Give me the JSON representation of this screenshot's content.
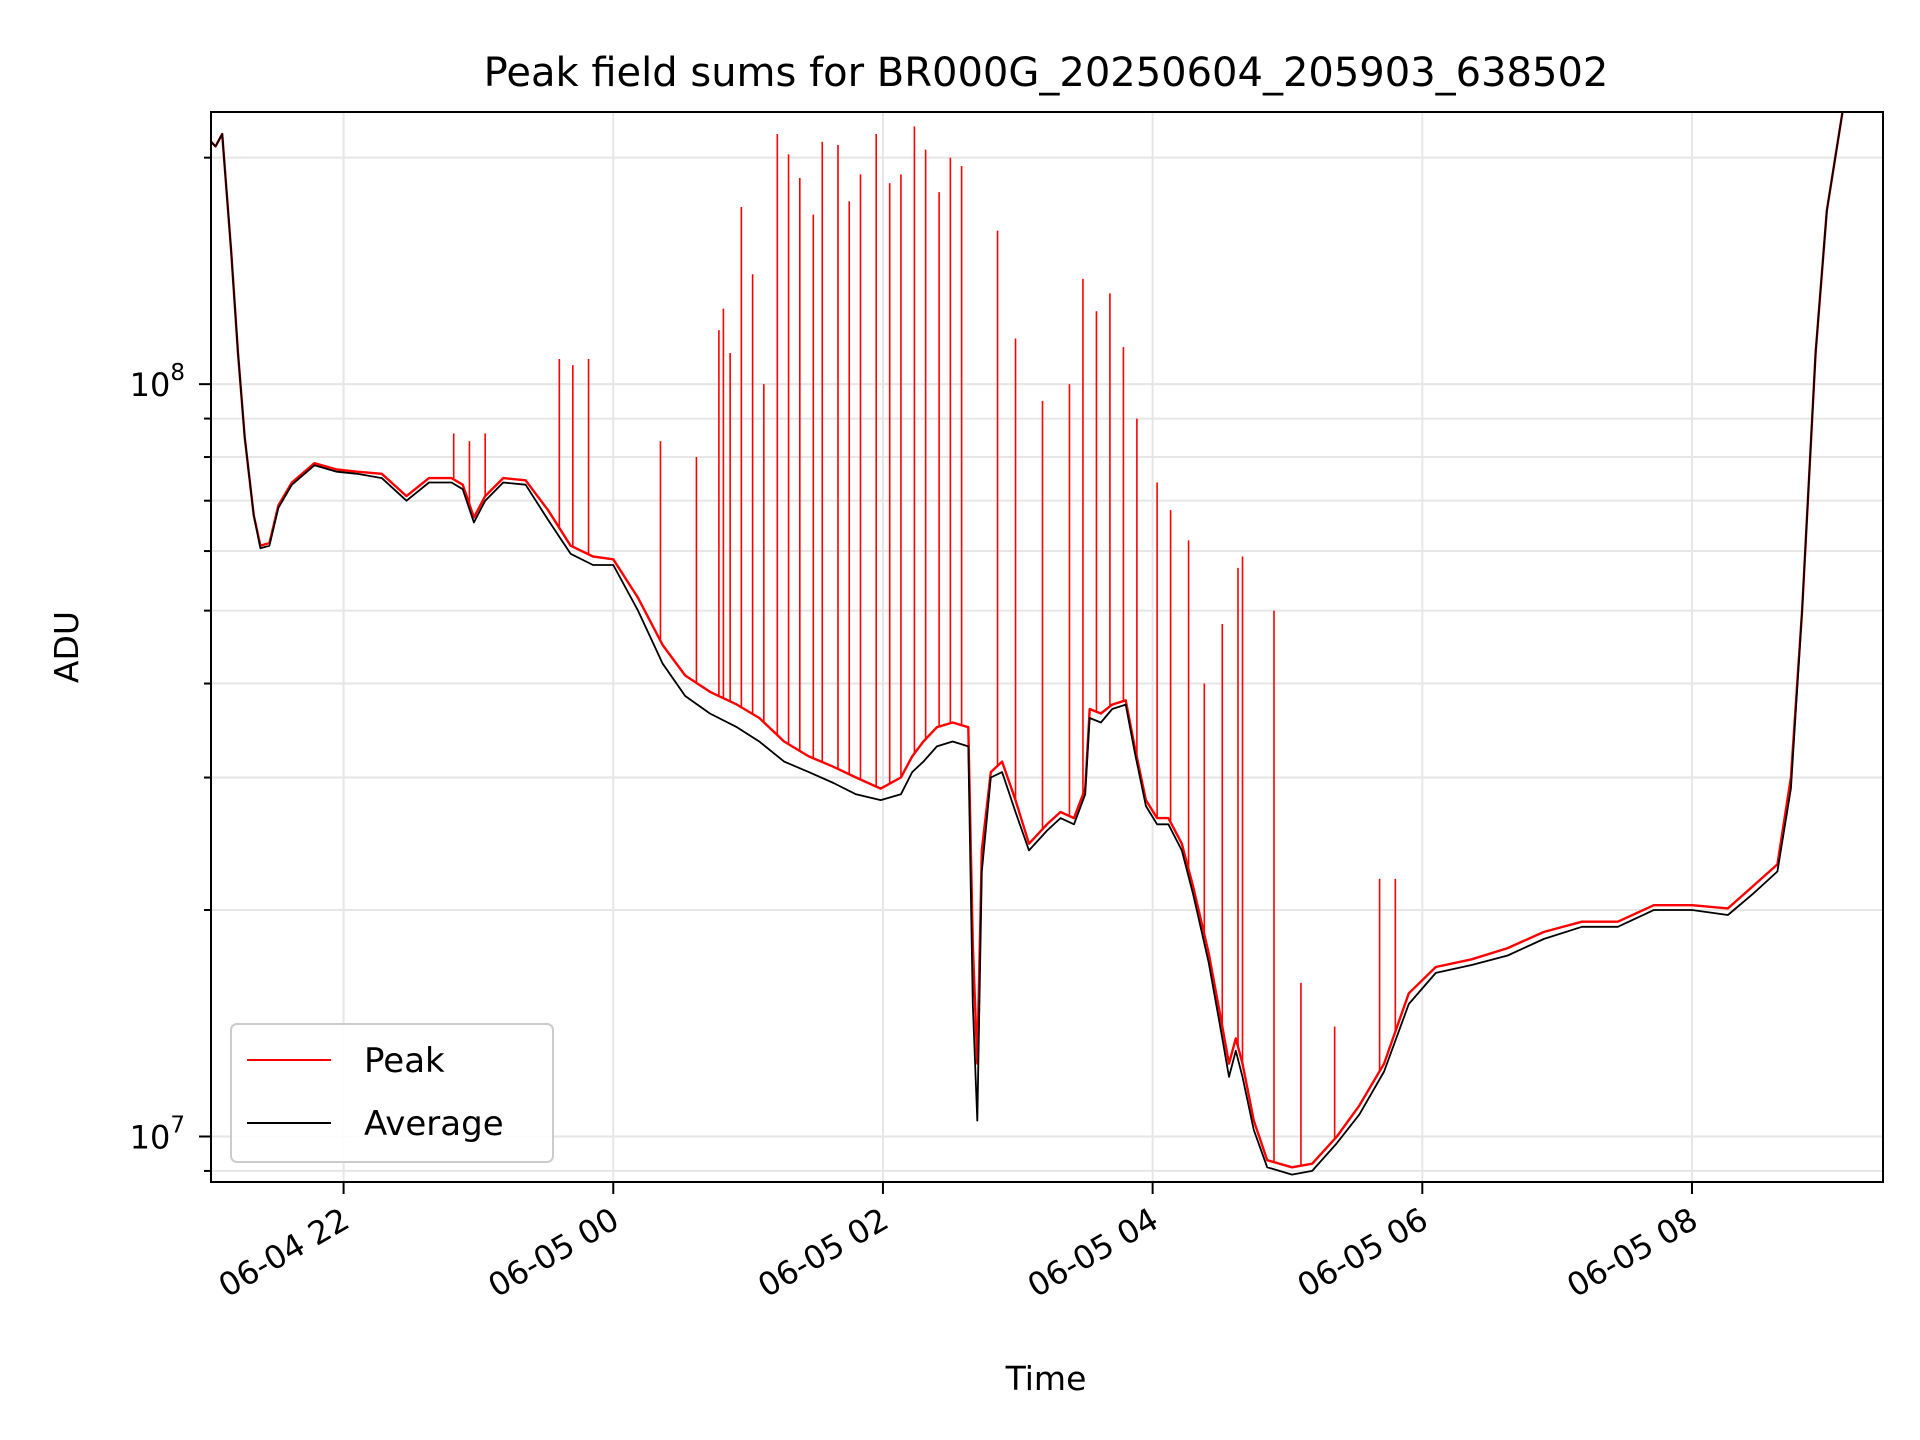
{
  "chart_data": {
    "type": "line",
    "title": "Peak field sums for BR000G_20250604_205903_638502",
    "xlabel": "Time",
    "ylabel": "ADU",
    "x_range": [
      "2025-06-04T21:01",
      "2025-06-05T09:25"
    ],
    "ylim": [
      8700000,
      230000000
    ],
    "y_scale": "log",
    "grid": true,
    "legend_position": "lower-left",
    "x_ticks": [
      {
        "t": "2025-06-04T22:00",
        "label": "06-04 22"
      },
      {
        "t": "2025-06-05T00:00",
        "label": "06-05 00"
      },
      {
        "t": "2025-06-05T02:00",
        "label": "06-05 02"
      },
      {
        "t": "2025-06-05T04:00",
        "label": "06-05 04"
      },
      {
        "t": "2025-06-05T06:00",
        "label": "06-05 06"
      },
      {
        "t": "2025-06-05T08:00",
        "label": "06-05 08"
      }
    ],
    "y_ticks": [
      {
        "value": 10000000,
        "base": "10",
        "exp": "7"
      },
      {
        "value": 100000000,
        "base": "10",
        "exp": "8"
      }
    ],
    "series": [
      {
        "name": "Peak",
        "color": "#ff0000",
        "line": [
          [
            "2025-06-04T21:01",
            210000000
          ],
          [
            "2025-06-04T21:03",
            207000000
          ],
          [
            "2025-06-04T21:06",
            215000000
          ],
          [
            "2025-06-04T21:10",
            150000000
          ],
          [
            "2025-06-04T21:13",
            110000000
          ],
          [
            "2025-06-04T21:16",
            85000000
          ],
          [
            "2025-06-04T21:20",
            67000000
          ],
          [
            "2025-06-04T21:23",
            61000000
          ],
          [
            "2025-06-04T21:27",
            61500000
          ],
          [
            "2025-06-04T21:31",
            69000000
          ],
          [
            "2025-06-04T21:37",
            74000000
          ],
          [
            "2025-06-04T21:47",
            78500000
          ],
          [
            "2025-06-04T21:57",
            77000000
          ],
          [
            "2025-06-04T22:06",
            76500000
          ],
          [
            "2025-06-04T22:17",
            76000000
          ],
          [
            "2025-06-04T22:28",
            71000000
          ],
          [
            "2025-06-04T22:38",
            75000000
          ],
          [
            "2025-06-04T22:48",
            75000000
          ],
          [
            "2025-06-04T22:53",
            73500000
          ],
          [
            "2025-06-04T22:58",
            66500000
          ],
          [
            "2025-06-04T23:03",
            71000000
          ],
          [
            "2025-06-04T23:11",
            75000000
          ],
          [
            "2025-06-04T23:21",
            74500000
          ],
          [
            "2025-06-04T23:31",
            68000000
          ],
          [
            "2025-06-04T23:41",
            61000000
          ],
          [
            "2025-06-04T23:51",
            59000000
          ],
          [
            "2025-06-05T00:00",
            58500000
          ],
          [
            "2025-06-05T00:11",
            52000000
          ],
          [
            "2025-06-05T00:22",
            45000000
          ],
          [
            "2025-06-05T00:32",
            41000000
          ],
          [
            "2025-06-05T00:43",
            39000000
          ],
          [
            "2025-06-05T00:55",
            37500000
          ],
          [
            "2025-06-05T01:05",
            36000000
          ],
          [
            "2025-06-05T01:16",
            33500000
          ],
          [
            "2025-06-05T01:27",
            32000000
          ],
          [
            "2025-06-05T01:38",
            31000000
          ],
          [
            "2025-06-05T01:48",
            30000000
          ],
          [
            "2025-06-05T01:59",
            29000000
          ],
          [
            "2025-06-05T02:08",
            30000000
          ],
          [
            "2025-06-05T02:13",
            32000000
          ],
          [
            "2025-06-05T02:18",
            33500000
          ],
          [
            "2025-06-05T02:24",
            35000000
          ],
          [
            "2025-06-05T02:31",
            35500000
          ],
          [
            "2025-06-05T02:38",
            35000000
          ],
          [
            "2025-06-05T02:40",
            18000000
          ],
          [
            "2025-06-05T02:42",
            12500000
          ],
          [
            "2025-06-05T02:44",
            24000000
          ],
          [
            "2025-06-05T02:48",
            30500000
          ],
          [
            "2025-06-05T02:53",
            31500000
          ],
          [
            "2025-06-05T02:59",
            28000000
          ],
          [
            "2025-06-05T03:05",
            24500000
          ],
          [
            "2025-06-05T03:13",
            26000000
          ],
          [
            "2025-06-05T03:19",
            27000000
          ],
          [
            "2025-06-05T03:25",
            26500000
          ],
          [
            "2025-06-05T03:30",
            29000000
          ],
          [
            "2025-06-05T03:32",
            37000000
          ],
          [
            "2025-06-05T03:37",
            36500000
          ],
          [
            "2025-06-05T03:42",
            37500000
          ],
          [
            "2025-06-05T03:48",
            38000000
          ],
          [
            "2025-06-05T03:52",
            33000000
          ],
          [
            "2025-06-05T03:57",
            28000000
          ],
          [
            "2025-06-05T04:02",
            26500000
          ],
          [
            "2025-06-05T04:07",
            26500000
          ],
          [
            "2025-06-05T04:13",
            24500000
          ],
          [
            "2025-06-05T04:18",
            21500000
          ],
          [
            "2025-06-05T04:25",
            17500000
          ],
          [
            "2025-06-05T04:31",
            14000000
          ],
          [
            "2025-06-05T04:34",
            12500000
          ],
          [
            "2025-06-05T04:37",
            13500000
          ],
          [
            "2025-06-05T04:40",
            12500000
          ],
          [
            "2025-06-05T04:45",
            10500000
          ],
          [
            "2025-06-05T04:51",
            9300000
          ],
          [
            "2025-06-05T05:02",
            9100000
          ],
          [
            "2025-06-05T05:11",
            9200000
          ],
          [
            "2025-06-05T05:22",
            10000000
          ],
          [
            "2025-06-05T05:32",
            11000000
          ],
          [
            "2025-06-05T05:43",
            12500000
          ],
          [
            "2025-06-05T05:54",
            15500000
          ],
          [
            "2025-06-05T06:06",
            16800000
          ],
          [
            "2025-06-05T06:22",
            17200000
          ],
          [
            "2025-06-05T06:38",
            17800000
          ],
          [
            "2025-06-05T06:54",
            18700000
          ],
          [
            "2025-06-05T07:11",
            19300000
          ],
          [
            "2025-06-05T07:27",
            19300000
          ],
          [
            "2025-06-05T07:43",
            20300000
          ],
          [
            "2025-06-05T08:00",
            20300000
          ],
          [
            "2025-06-05T08:16",
            20100000
          ],
          [
            "2025-06-05T08:27",
            21500000
          ],
          [
            "2025-06-05T08:38",
            23000000
          ],
          [
            "2025-06-05T08:44",
            30000000
          ],
          [
            "2025-06-05T08:49",
            50000000
          ],
          [
            "2025-06-05T08:55",
            110000000
          ],
          [
            "2025-06-05T09:00",
            170000000
          ],
          [
            "2025-06-05T09:07",
            230000000
          ]
        ],
        "spikes": [
          [
            "2025-06-04T22:49",
            86000000
          ],
          [
            "2025-06-04T22:56",
            84000000
          ],
          [
            "2025-06-04T23:03",
            86000000
          ],
          [
            "2025-06-04T23:36",
            108000000
          ],
          [
            "2025-06-04T23:42",
            106000000
          ],
          [
            "2025-06-04T23:49",
            108000000
          ],
          [
            "2025-06-05T00:21",
            84000000
          ],
          [
            "2025-06-05T00:37",
            80000000
          ],
          [
            "2025-06-05T00:47",
            118000000
          ],
          [
            "2025-06-05T00:49",
            126000000
          ],
          [
            "2025-06-05T00:52",
            110000000
          ],
          [
            "2025-06-05T00:57",
            172000000
          ],
          [
            "2025-06-05T01:02",
            140000000
          ],
          [
            "2025-06-05T01:07",
            100000000
          ],
          [
            "2025-06-05T01:13",
            215000000
          ],
          [
            "2025-06-05T01:18",
            202000000
          ],
          [
            "2025-06-05T01:23",
            188000000
          ],
          [
            "2025-06-05T01:29",
            168000000
          ],
          [
            "2025-06-05T01:33",
            210000000
          ],
          [
            "2025-06-05T01:40",
            208000000
          ],
          [
            "2025-06-05T01:45",
            175000000
          ],
          [
            "2025-06-05T01:50",
            190000000
          ],
          [
            "2025-06-05T01:57",
            215000000
          ],
          [
            "2025-06-05T02:03",
            185000000
          ],
          [
            "2025-06-05T02:08",
            190000000
          ],
          [
            "2025-06-05T02:14",
            220000000
          ],
          [
            "2025-06-05T02:19",
            205000000
          ],
          [
            "2025-06-05T02:25",
            180000000
          ],
          [
            "2025-06-05T02:30",
            200000000
          ],
          [
            "2025-06-05T02:35",
            195000000
          ],
          [
            "2025-06-05T02:51",
            160000000
          ],
          [
            "2025-06-05T02:59",
            115000000
          ],
          [
            "2025-06-05T03:11",
            95000000
          ],
          [
            "2025-06-05T03:23",
            100000000
          ],
          [
            "2025-06-05T03:29",
            138000000
          ],
          [
            "2025-06-05T03:35",
            125000000
          ],
          [
            "2025-06-05T03:41",
            132000000
          ],
          [
            "2025-06-05T03:47",
            112000000
          ],
          [
            "2025-06-05T03:53",
            90000000
          ],
          [
            "2025-06-05T04:02",
            74000000
          ],
          [
            "2025-06-05T04:08",
            68000000
          ],
          [
            "2025-06-05T04:16",
            62000000
          ],
          [
            "2025-06-05T04:23",
            40000000
          ],
          [
            "2025-06-05T04:31",
            48000000
          ],
          [
            "2025-06-05T04:38",
            57000000
          ],
          [
            "2025-06-05T04:40",
            59000000
          ],
          [
            "2025-06-05T04:54",
            50000000
          ],
          [
            "2025-06-05T05:06",
            16000000
          ],
          [
            "2025-06-05T05:21",
            14000000
          ],
          [
            "2025-06-05T05:41",
            22000000
          ],
          [
            "2025-06-05T05:48",
            22000000
          ]
        ]
      },
      {
        "name": "Average",
        "color": "#000000",
        "line": [
          [
            "2025-06-04T21:01",
            210000000
          ],
          [
            "2025-06-04T21:03",
            207000000
          ],
          [
            "2025-06-04T21:06",
            215000000
          ],
          [
            "2025-06-04T21:10",
            150000000
          ],
          [
            "2025-06-04T21:13",
            110000000
          ],
          [
            "2025-06-04T21:16",
            85000000
          ],
          [
            "2025-06-04T21:20",
            67000000
          ],
          [
            "2025-06-04T21:23",
            60500000
          ],
          [
            "2025-06-04T21:27",
            61000000
          ],
          [
            "2025-06-04T21:31",
            68500000
          ],
          [
            "2025-06-04T21:37",
            73500000
          ],
          [
            "2025-06-04T21:47",
            78000000
          ],
          [
            "2025-06-04T21:57",
            76500000
          ],
          [
            "2025-06-04T22:06",
            76000000
          ],
          [
            "2025-06-04T22:17",
            75000000
          ],
          [
            "2025-06-04T22:28",
            70000000
          ],
          [
            "2025-06-04T22:38",
            74000000
          ],
          [
            "2025-06-04T22:48",
            74000000
          ],
          [
            "2025-06-04T22:53",
            72500000
          ],
          [
            "2025-06-04T22:58",
            65500000
          ],
          [
            "2025-06-04T23:03",
            70000000
          ],
          [
            "2025-06-04T23:11",
            74000000
          ],
          [
            "2025-06-04T23:21",
            73500000
          ],
          [
            "2025-06-04T23:31",
            66000000
          ],
          [
            "2025-06-04T23:41",
            59500000
          ],
          [
            "2025-06-04T23:51",
            57500000
          ],
          [
            "2025-06-05T00:00",
            57500000
          ],
          [
            "2025-06-05T00:11",
            50000000
          ],
          [
            "2025-06-05T00:22",
            42500000
          ],
          [
            "2025-06-05T00:32",
            38500000
          ],
          [
            "2025-06-05T00:43",
            36500000
          ],
          [
            "2025-06-05T00:55",
            35000000
          ],
          [
            "2025-06-05T01:05",
            33500000
          ],
          [
            "2025-06-05T01:16",
            31500000
          ],
          [
            "2025-06-05T01:27",
            30500000
          ],
          [
            "2025-06-05T01:38",
            29500000
          ],
          [
            "2025-06-05T01:48",
            28500000
          ],
          [
            "2025-06-05T01:59",
            28000000
          ],
          [
            "2025-06-05T02:08",
            28500000
          ],
          [
            "2025-06-05T02:13",
            30500000
          ],
          [
            "2025-06-05T02:18",
            31500000
          ],
          [
            "2025-06-05T02:24",
            33000000
          ],
          [
            "2025-06-05T02:31",
            33500000
          ],
          [
            "2025-06-05T02:38",
            33000000
          ],
          [
            "2025-06-05T02:40",
            15000000
          ],
          [
            "2025-06-05T02:42",
            10500000
          ],
          [
            "2025-06-05T02:44",
            22500000
          ],
          [
            "2025-06-05T02:48",
            30000000
          ],
          [
            "2025-06-05T02:53",
            30500000
          ],
          [
            "2025-06-05T02:59",
            27000000
          ],
          [
            "2025-06-05T03:05",
            24000000
          ],
          [
            "2025-06-05T03:13",
            25500000
          ],
          [
            "2025-06-05T03:19",
            26500000
          ],
          [
            "2025-06-05T03:25",
            26000000
          ],
          [
            "2025-06-05T03:30",
            28500000
          ],
          [
            "2025-06-05T03:32",
            36000000
          ],
          [
            "2025-06-05T03:37",
            35500000
          ],
          [
            "2025-06-05T03:42",
            37000000
          ],
          [
            "2025-06-05T03:48",
            37500000
          ],
          [
            "2025-06-05T03:52",
            32500000
          ],
          [
            "2025-06-05T03:57",
            27500000
          ],
          [
            "2025-06-05T04:02",
            26000000
          ],
          [
            "2025-06-05T04:07",
            26000000
          ],
          [
            "2025-06-05T04:13",
            24000000
          ],
          [
            "2025-06-05T04:18",
            21000000
          ],
          [
            "2025-06-05T04:25",
            17000000
          ],
          [
            "2025-06-05T04:31",
            13500000
          ],
          [
            "2025-06-05T04:34",
            12000000
          ],
          [
            "2025-06-05T04:37",
            13000000
          ],
          [
            "2025-06-05T04:40",
            12000000
          ],
          [
            "2025-06-05T04:45",
            10200000
          ],
          [
            "2025-06-05T04:51",
            9100000
          ],
          [
            "2025-06-05T05:02",
            8900000
          ],
          [
            "2025-06-05T05:11",
            9000000
          ],
          [
            "2025-06-05T05:22",
            9800000
          ],
          [
            "2025-06-05T05:32",
            10700000
          ],
          [
            "2025-06-05T05:43",
            12200000
          ],
          [
            "2025-06-05T05:54",
            15000000
          ],
          [
            "2025-06-05T06:06",
            16500000
          ],
          [
            "2025-06-05T06:22",
            16900000
          ],
          [
            "2025-06-05T06:38",
            17400000
          ],
          [
            "2025-06-05T06:54",
            18300000
          ],
          [
            "2025-06-05T07:11",
            19000000
          ],
          [
            "2025-06-05T07:27",
            19000000
          ],
          [
            "2025-06-05T07:43",
            20000000
          ],
          [
            "2025-06-05T08:00",
            20000000
          ],
          [
            "2025-06-05T08:16",
            19700000
          ],
          [
            "2025-06-05T08:27",
            21000000
          ],
          [
            "2025-06-05T08:38",
            22500000
          ],
          [
            "2025-06-05T08:44",
            29000000
          ],
          [
            "2025-06-05T08:49",
            50000000
          ],
          [
            "2025-06-05T08:55",
            110000000
          ],
          [
            "2025-06-05T09:00",
            170000000
          ],
          [
            "2025-06-05T09:07",
            230000000
          ]
        ]
      }
    ]
  }
}
